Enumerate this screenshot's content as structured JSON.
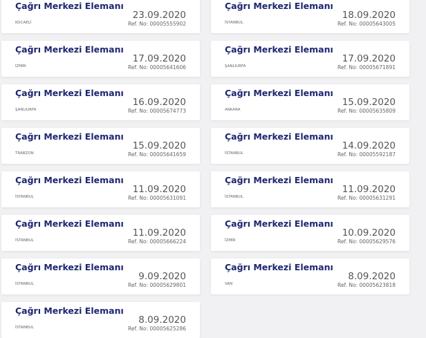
{
  "listings": [
    {
      "title": "Çağrı Merkezi Elemanı",
      "date": "23.09.2020",
      "ref": "Ref. No: 00005555902",
      "city": "KOCAELİ"
    },
    {
      "title": "Çağrı Merkezi Elemanı",
      "date": "18.09.2020",
      "ref": "Ref. No: 00005643005",
      "city": "İSTANBUL"
    },
    {
      "title": "Çağrı Merkezi Elemanı",
      "date": "17.09.2020",
      "ref": "Ref. No: 00005641606",
      "city": "İZMİR"
    },
    {
      "title": "Çağrı Merkezi Elemanı",
      "date": "17.09.2020",
      "ref": "Ref. No: 00005671891",
      "city": "ŞANLIURFA"
    },
    {
      "title": "Çağrı Merkezi Elemanı",
      "date": "16.09.2020",
      "ref": "Ref. No: 00005674773",
      "city": "ŞANLIURFA"
    },
    {
      "title": "Çağrı Merkezi Elemanı",
      "date": "15.09.2020",
      "ref": "Ref. No: 00005635809",
      "city": "ANKARA"
    },
    {
      "title": "Çağrı Merkezi Elemanı",
      "date": "15.09.2020",
      "ref": "Ref. No: 00005641659",
      "city": "TRABZON"
    },
    {
      "title": "Çağrı Merkezi Elemanı",
      "date": "14.09.2020",
      "ref": "Ref. No: 00005592187",
      "city": "İSTANBUL"
    },
    {
      "title": "Çağrı Merkezi Elemanı",
      "date": "11.09.2020",
      "ref": "Ref. No: 00005631091",
      "city": "İSTANBUL"
    },
    {
      "title": "Çağrı Merkezi Elemanı",
      "date": "11.09.2020",
      "ref": "Ref. No: 00005631291",
      "city": "İSTANBUL"
    },
    {
      "title": "Çağrı Merkezi Elemanı",
      "date": "11.09.2020",
      "ref": "Ref. No: 00005666224",
      "city": "İSTANBUL"
    },
    {
      "title": "Çağrı Merkezi Elemanı",
      "date": "10.09.2020",
      "ref": "Ref. No: 00005629576",
      "city": "İZMİR"
    },
    {
      "title": "Çağrı Merkezi Elemanı",
      "date": "9.09.2020",
      "ref": "Ref. No: 00005629801",
      "city": "İSTANBUL"
    },
    {
      "title": "Çağrı Merkezi Elemanı",
      "date": "8.09.2020",
      "ref": "Ref. No: 00005623818",
      "city": "VAN"
    },
    {
      "title": "Çağrı Merkezi Elemanı",
      "date": "8.09.2020",
      "ref": "Ref. No: 00005625286",
      "city": "İSTANBUL"
    }
  ]
}
